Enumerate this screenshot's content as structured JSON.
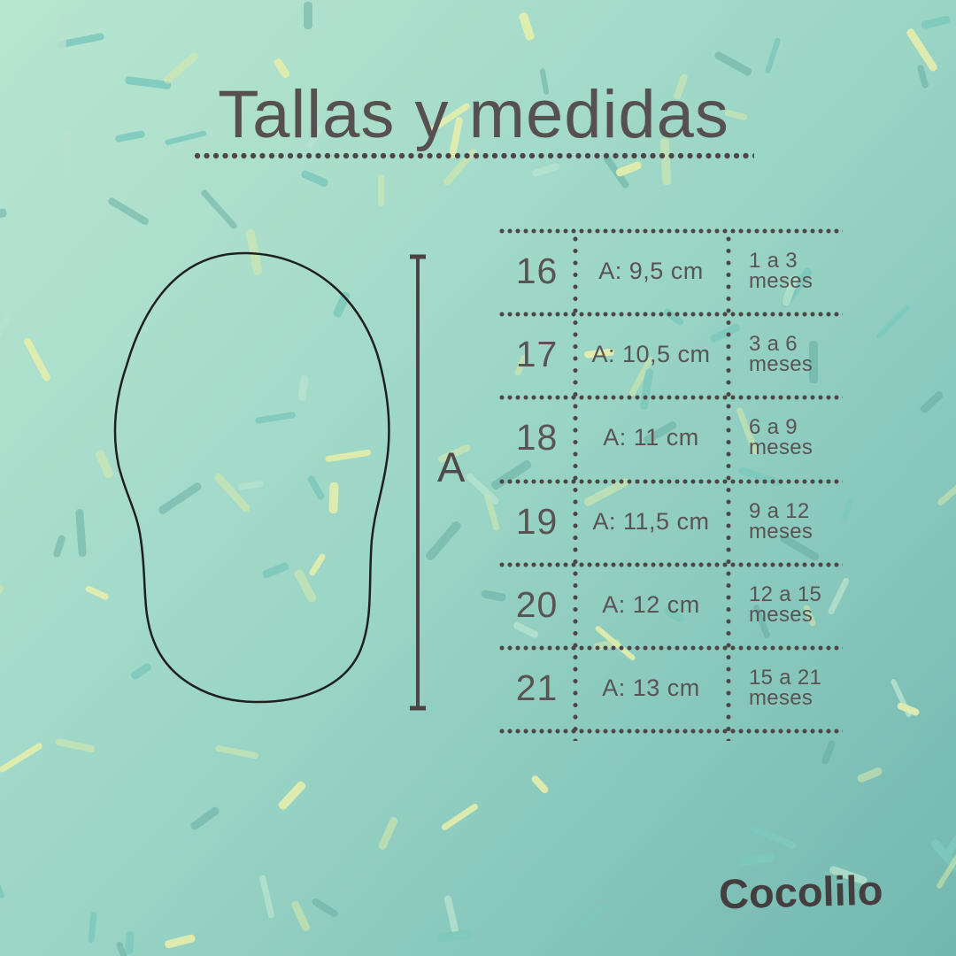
{
  "colors": {
    "background_top_left": "#b4e4ce",
    "background_mid": "#9bd6c6",
    "background_bottom_right": "#74b8b0",
    "text": "#5a5353",
    "title_text": "#575050",
    "dotted_lines": "#4c4646",
    "sole_outline": "#1f1f1f",
    "brand_text": "#443e3e",
    "confetti_palette": [
      "rgba(228,237,172,0.9)",
      "rgba(216,233,170,0.55)",
      "rgba(124,200,188,0.85)",
      "rgba(97,170,160,0.5)",
      "rgba(183,226,206,0.8)"
    ]
  },
  "header": {
    "title": "Tallas y medidas"
  },
  "diagram": {
    "measure_label": "A",
    "shape": "baby-shoe-sole-outline"
  },
  "size_table": {
    "rows": [
      {
        "size": "16",
        "measure": "A: 9,5 cm",
        "age_top": "1 a 3",
        "age_bottom": "meses"
      },
      {
        "size": "17",
        "measure": "A: 10,5 cm",
        "age_top": "3 a 6",
        "age_bottom": "meses"
      },
      {
        "size": "18",
        "measure": "A: 11 cm",
        "age_top": "6 a 9",
        "age_bottom": "meses"
      },
      {
        "size": "19",
        "measure": "A: 11,5 cm",
        "age_top": "9 a 12",
        "age_bottom": "meses"
      },
      {
        "size": "20",
        "measure": "A: 12 cm",
        "age_top": "12 a 15",
        "age_bottom": "meses"
      },
      {
        "size": "21",
        "measure": "A: 13 cm",
        "age_top": "15 a 21",
        "age_bottom": "meses"
      }
    ]
  },
  "footer": {
    "brand": "Cocolilo"
  }
}
